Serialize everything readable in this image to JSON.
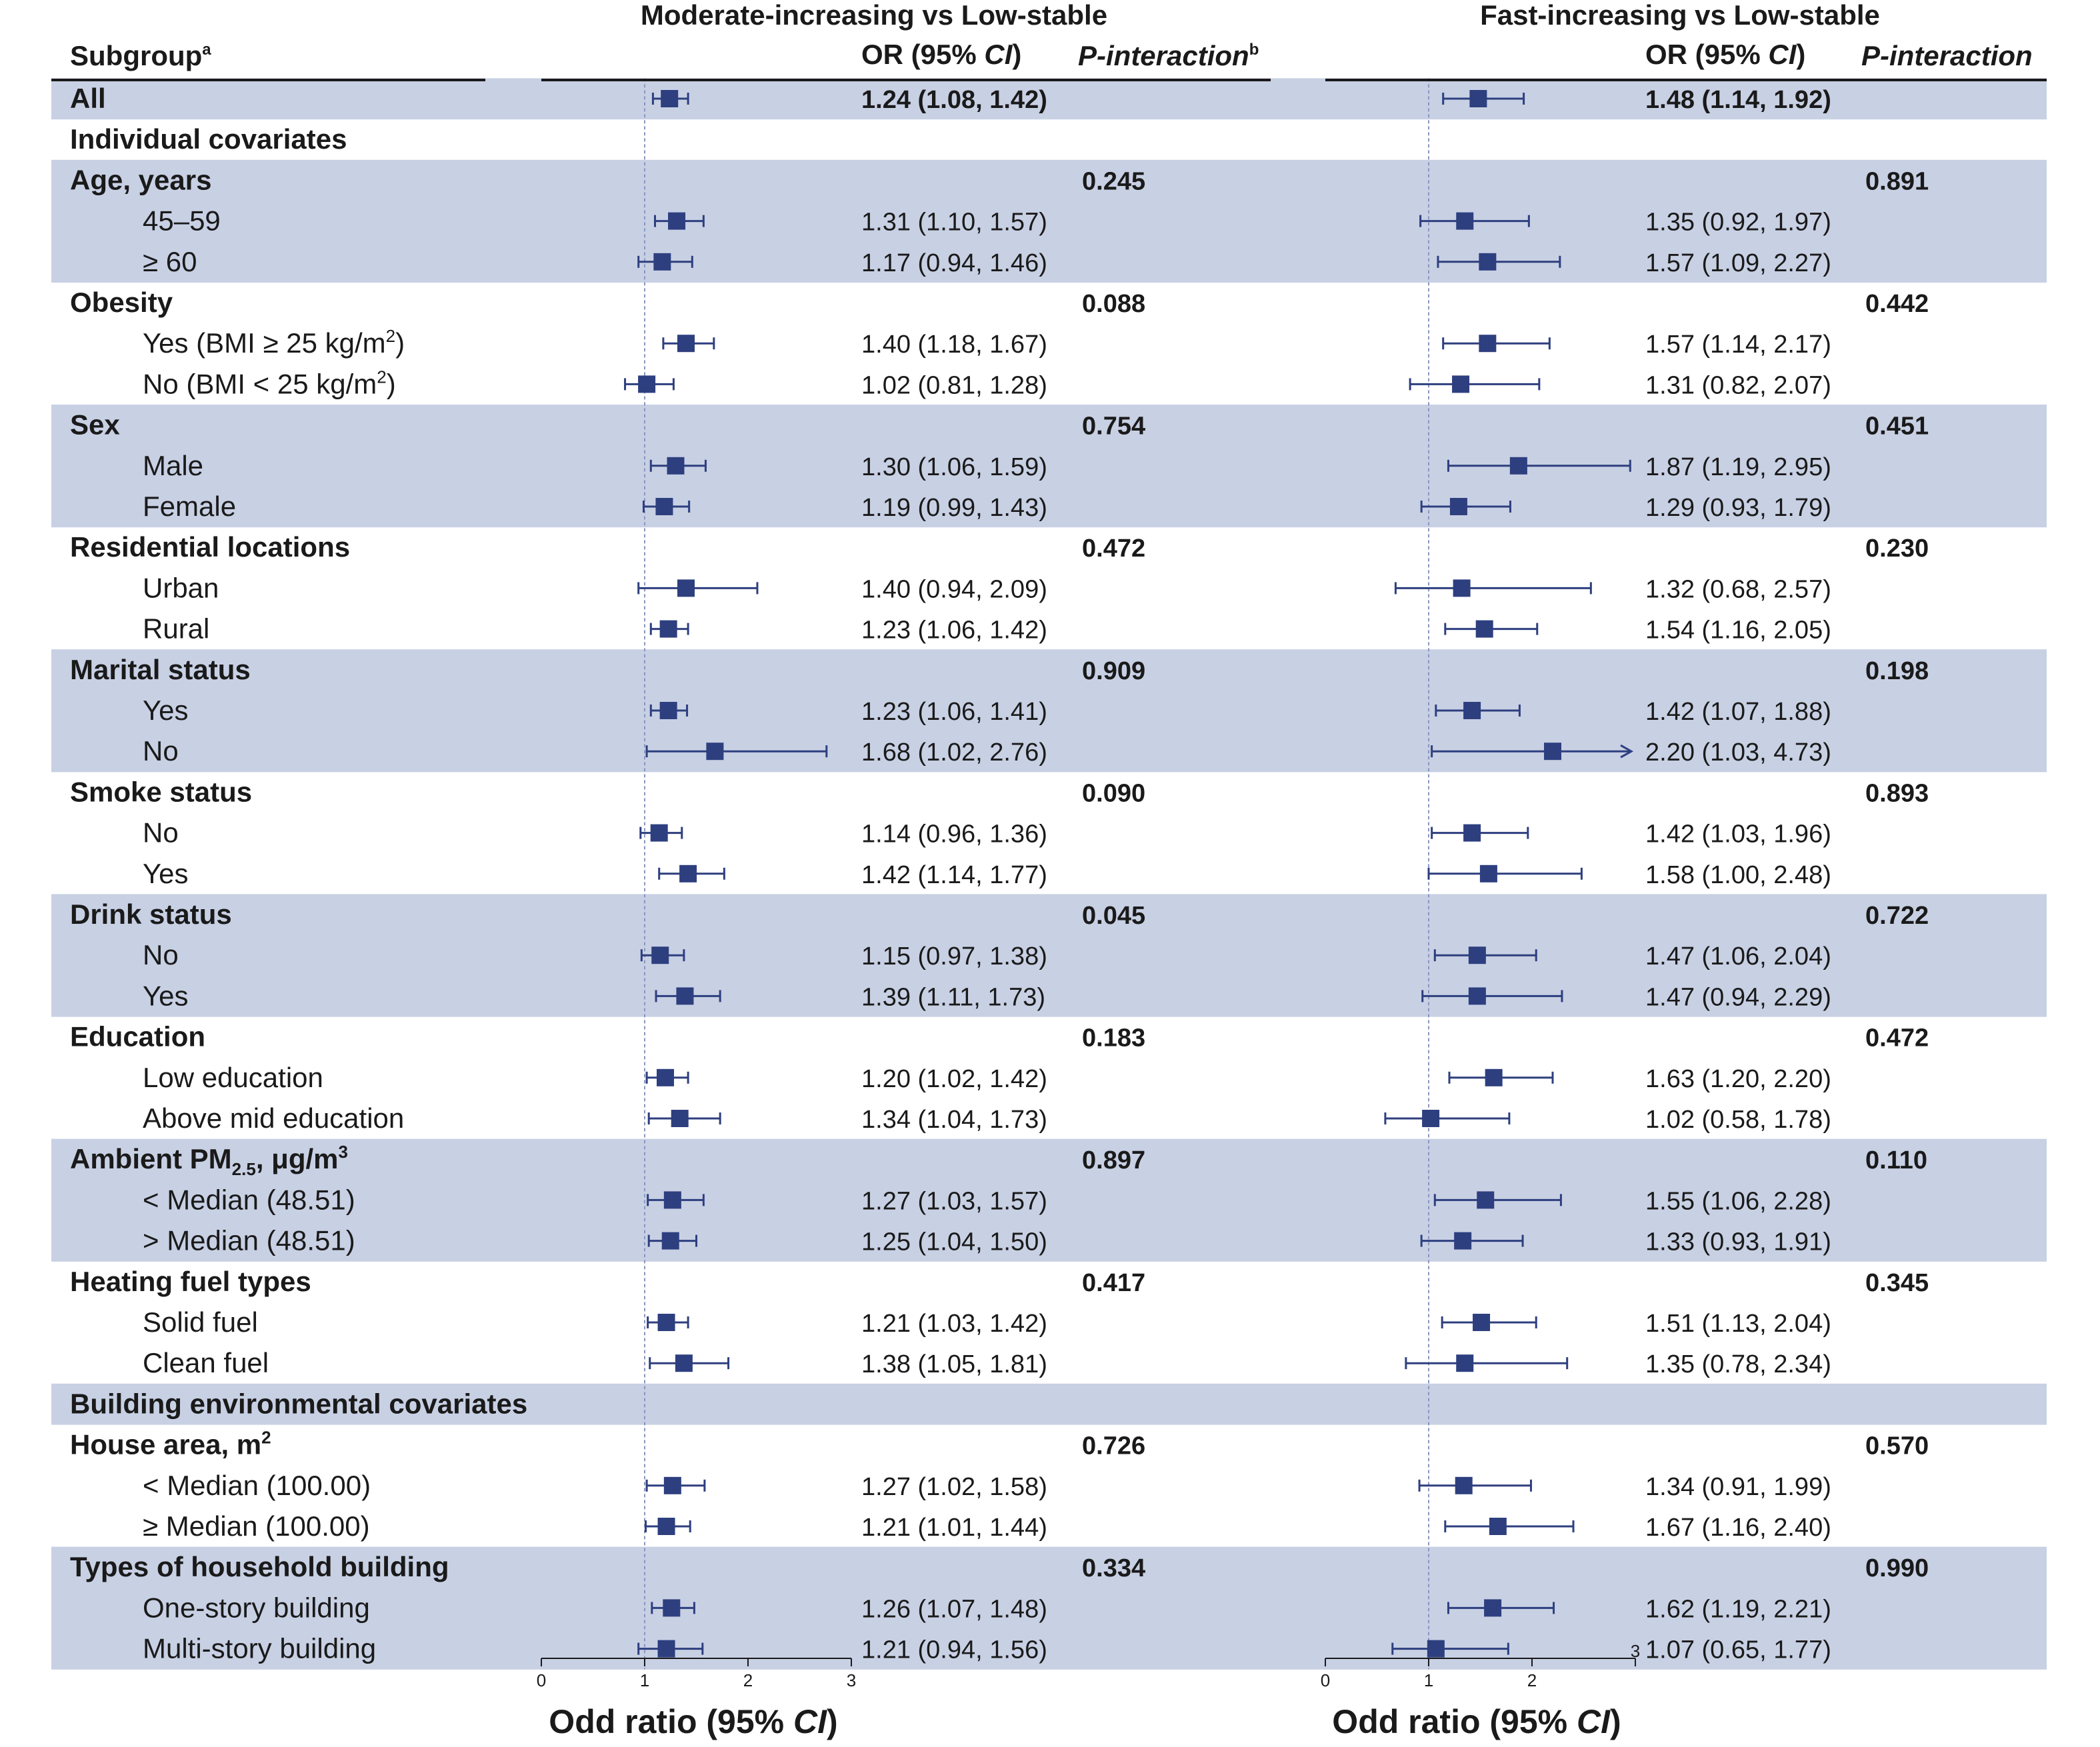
{
  "header": {
    "subgroup_label": "Subgroup",
    "subgroup_sup": "a",
    "panel_left_title": "Moderate-increasing vs Low-stable",
    "panel_right_title": "Fast-increasing vs Low-stable",
    "or_label_prefix": "OR (95% ",
    "or_label_ci": "CI",
    "or_label_suffix": ")",
    "p_left_label": "P-interaction",
    "p_left_sup": "b",
    "p_right_label": "P-interaction"
  },
  "xaxis_label_prefix": "Odd ratio (95% ",
  "xaxis_label_ci": "CI",
  "xaxis_label_suffix": ")",
  "colors": {
    "band": "#c8d0e4",
    "marker": "#2e3f7f",
    "reference_line": "#8a97c0",
    "text": "#1a1a1a"
  },
  "chart_data": [
    {
      "type": "forest",
      "title": "Moderate-increasing vs Low-stable",
      "xlabel": "Odd ratio (95% CI)",
      "xlim": [
        0,
        3
      ],
      "xticks": [
        0,
        1,
        2,
        3
      ],
      "reference": 1,
      "panel": "left"
    },
    {
      "type": "forest",
      "title": "Fast-increasing vs Low-stable",
      "xlabel": "Odd ratio (95% CI)",
      "xlim": [
        0,
        3
      ],
      "xticks": [
        0,
        1,
        2,
        3
      ],
      "reference": 1,
      "panel": "right"
    }
  ],
  "rows": [
    {
      "label": "All",
      "kind": "header",
      "band": true,
      "left": {
        "or": 1.24,
        "lo": 1.08,
        "hi": 1.42,
        "text": "1.24 (1.08, 1.42)"
      },
      "right": {
        "or": 1.48,
        "lo": 1.14,
        "hi": 1.92,
        "text": "1.48 (1.14, 1.92)"
      }
    },
    {
      "label": "Individual covariates",
      "kind": "section",
      "band": false
    },
    {
      "label": "Age, years",
      "kind": "group",
      "band": true,
      "p_left": "0.245",
      "p_right": "0.891"
    },
    {
      "label": "45–59",
      "kind": "sub",
      "band": true,
      "left": {
        "or": 1.31,
        "lo": 1.1,
        "hi": 1.57,
        "text": "1.31 (1.10, 1.57)"
      },
      "right": {
        "or": 1.35,
        "lo": 0.92,
        "hi": 1.97,
        "text": "1.35 (0.92, 1.97)"
      }
    },
    {
      "label": "≥ 60",
      "kind": "sub",
      "band": true,
      "left": {
        "or": 1.17,
        "lo": 0.94,
        "hi": 1.46,
        "text": "1.17 (0.94, 1.46)"
      },
      "right": {
        "or": 1.57,
        "lo": 1.09,
        "hi": 2.27,
        "text": "1.57 (1.09, 2.27)"
      }
    },
    {
      "label": "Obesity",
      "kind": "group",
      "band": false,
      "p_left": "0.088",
      "p_right": "0.442"
    },
    {
      "label": "Yes (BMI ≥ 25 kg/m",
      "sup": "2",
      "tail": ")",
      "kind": "sub",
      "band": false,
      "left": {
        "or": 1.4,
        "lo": 1.18,
        "hi": 1.67,
        "text": "1.40 (1.18, 1.67)"
      },
      "right": {
        "or": 1.57,
        "lo": 1.14,
        "hi": 2.17,
        "text": "1.57 (1.14, 2.17)"
      }
    },
    {
      "label": "No (BMI < 25 kg/m",
      "sup": "2",
      "tail": ")",
      "kind": "sub",
      "band": false,
      "left": {
        "or": 1.02,
        "lo": 0.81,
        "hi": 1.28,
        "text": "1.02 (0.81, 1.28)"
      },
      "right": {
        "or": 1.31,
        "lo": 0.82,
        "hi": 2.07,
        "text": "1.31 (0.82, 2.07)"
      }
    },
    {
      "label": "Sex",
      "kind": "group",
      "band": true,
      "p_left": "0.754",
      "p_right": "0.451"
    },
    {
      "label": "Male",
      "kind": "sub",
      "band": true,
      "left": {
        "or": 1.3,
        "lo": 1.06,
        "hi": 1.59,
        "text": "1.30 (1.06, 1.59)"
      },
      "right": {
        "or": 1.87,
        "lo": 1.19,
        "hi": 2.95,
        "text": "1.87 (1.19, 2.95)"
      }
    },
    {
      "label": "Female",
      "kind": "sub",
      "band": true,
      "left": {
        "or": 1.19,
        "lo": 0.99,
        "hi": 1.43,
        "text": "1.19 (0.99, 1.43)"
      },
      "right": {
        "or": 1.29,
        "lo": 0.93,
        "hi": 1.79,
        "text": "1.29 (0.93, 1.79)"
      }
    },
    {
      "label": "Residential locations",
      "kind": "group",
      "band": false,
      "p_left": "0.472",
      "p_right": "0.230"
    },
    {
      "label": "Urban",
      "kind": "sub",
      "band": false,
      "left": {
        "or": 1.4,
        "lo": 0.94,
        "hi": 2.09,
        "text": "1.40 (0.94, 2.09)"
      },
      "right": {
        "or": 1.32,
        "lo": 0.68,
        "hi": 2.57,
        "text": "1.32 (0.68, 2.57)"
      }
    },
    {
      "label": "Rural",
      "kind": "sub",
      "band": false,
      "left": {
        "or": 1.23,
        "lo": 1.06,
        "hi": 1.42,
        "text": "1.23 (1.06, 1.42)"
      },
      "right": {
        "or": 1.54,
        "lo": 1.16,
        "hi": 2.05,
        "text": "1.54 (1.16, 2.05)"
      }
    },
    {
      "label": "Marital status",
      "kind": "group",
      "band": true,
      "p_left": "0.909",
      "p_right": "0.198"
    },
    {
      "label": "Yes",
      "kind": "sub",
      "band": true,
      "left": {
        "or": 1.23,
        "lo": 1.06,
        "hi": 1.41,
        "text": "1.23 (1.06, 1.41)"
      },
      "right": {
        "or": 1.42,
        "lo": 1.07,
        "hi": 1.88,
        "text": "1.42 (1.07, 1.88)"
      }
    },
    {
      "label": "No",
      "kind": "sub",
      "band": true,
      "left": {
        "or": 1.68,
        "lo": 1.02,
        "hi": 2.76,
        "text": "1.68 (1.02, 2.76)"
      },
      "right": {
        "or": 2.2,
        "lo": 1.03,
        "hi": 4.73,
        "text": "2.20 (1.03, 4.73)"
      }
    },
    {
      "label": "Smoke status",
      "kind": "group",
      "band": false,
      "p_left": "0.090",
      "p_right": "0.893"
    },
    {
      "label": "No",
      "kind": "sub",
      "band": false,
      "left": {
        "or": 1.14,
        "lo": 0.96,
        "hi": 1.36,
        "text": "1.14 (0.96, 1.36)"
      },
      "right": {
        "or": 1.42,
        "lo": 1.03,
        "hi": 1.96,
        "text": "1.42 (1.03, 1.96)"
      }
    },
    {
      "label": "Yes",
      "kind": "sub",
      "band": false,
      "left": {
        "or": 1.42,
        "lo": 1.14,
        "hi": 1.77,
        "text": "1.42 (1.14, 1.77)"
      },
      "right": {
        "or": 1.58,
        "lo": 1.0,
        "hi": 2.48,
        "text": "1.58 (1.00, 2.48)"
      }
    },
    {
      "label": "Drink status",
      "kind": "group",
      "band": true,
      "p_left": "0.045",
      "p_right": "0.722"
    },
    {
      "label": "No",
      "kind": "sub",
      "band": true,
      "left": {
        "or": 1.15,
        "lo": 0.97,
        "hi": 1.38,
        "text": "1.15 (0.97, 1.38)"
      },
      "right": {
        "or": 1.47,
        "lo": 1.06,
        "hi": 2.04,
        "text": "1.47 (1.06, 2.04)"
      }
    },
    {
      "label": "Yes",
      "kind": "sub",
      "band": true,
      "left": {
        "or": 1.39,
        "lo": 1.11,
        "hi": 1.73,
        "text": "1.39 (1.11, 1.73)"
      },
      "right": {
        "or": 1.47,
        "lo": 0.94,
        "hi": 2.29,
        "text": "1.47 (0.94, 2.29)"
      }
    },
    {
      "label": "Education",
      "kind": "group",
      "band": false,
      "p_left": "0.183",
      "p_right": "0.472"
    },
    {
      "label": "Low education",
      "kind": "sub",
      "band": false,
      "left": {
        "or": 1.2,
        "lo": 1.02,
        "hi": 1.42,
        "text": "1.20 (1.02, 1.42)"
      },
      "right": {
        "or": 1.63,
        "lo": 1.2,
        "hi": 2.2,
        "text": "1.63 (1.20, 2.20)"
      }
    },
    {
      "label": "Above mid education",
      "kind": "sub",
      "band": false,
      "left": {
        "or": 1.34,
        "lo": 1.04,
        "hi": 1.73,
        "text": "1.34 (1.04, 1.73)"
      },
      "right": {
        "or": 1.02,
        "lo": 0.58,
        "hi": 1.78,
        "text": "1.02 (0.58, 1.78)"
      }
    },
    {
      "label": "Ambient PM",
      "sub": "2.5",
      "tail": ", μg/m",
      "sup": "3",
      "kind": "group",
      "band": true,
      "p_left": "0.897",
      "p_right": "0.110"
    },
    {
      "label": "< Median (48.51)",
      "kind": "sub",
      "band": true,
      "left": {
        "or": 1.27,
        "lo": 1.03,
        "hi": 1.57,
        "text": "1.27 (1.03, 1.57)"
      },
      "right": {
        "or": 1.55,
        "lo": 1.06,
        "hi": 2.28,
        "text": "1.55 (1.06, 2.28)"
      }
    },
    {
      "label": "> Median (48.51)",
      "kind": "sub",
      "band": true,
      "left": {
        "or": 1.25,
        "lo": 1.04,
        "hi": 1.5,
        "text": "1.25 (1.04, 1.50)"
      },
      "right": {
        "or": 1.33,
        "lo": 0.93,
        "hi": 1.91,
        "text": "1.33 (0.93, 1.91)"
      }
    },
    {
      "label": "Heating fuel types",
      "kind": "group",
      "band": false,
      "p_left": "0.417",
      "p_right": "0.345"
    },
    {
      "label": "Solid fuel",
      "kind": "sub",
      "band": false,
      "left": {
        "or": 1.21,
        "lo": 1.03,
        "hi": 1.42,
        "text": "1.21 (1.03, 1.42)"
      },
      "right": {
        "or": 1.51,
        "lo": 1.13,
        "hi": 2.04,
        "text": "1.51 (1.13, 2.04)"
      }
    },
    {
      "label": "Clean fuel",
      "kind": "sub",
      "band": false,
      "left": {
        "or": 1.38,
        "lo": 1.05,
        "hi": 1.81,
        "text": "1.38 (1.05, 1.81)"
      },
      "right": {
        "or": 1.35,
        "lo": 0.78,
        "hi": 2.34,
        "text": "1.35 (0.78, 2.34)"
      }
    },
    {
      "label": "Building environmental covariates",
      "kind": "section",
      "band": true
    },
    {
      "label": "House area, m",
      "sup": "2",
      "kind": "group",
      "band": false,
      "p_left": "0.726",
      "p_right": "0.570"
    },
    {
      "label": "< Median (100.00)",
      "kind": "sub",
      "band": false,
      "left": {
        "or": 1.27,
        "lo": 1.02,
        "hi": 1.58,
        "text": "1.27 (1.02, 1.58)"
      },
      "right": {
        "or": 1.34,
        "lo": 0.91,
        "hi": 1.99,
        "text": "1.34 (0.91, 1.99)"
      }
    },
    {
      "label": "≥ Median (100.00)",
      "kind": "sub",
      "band": false,
      "left": {
        "or": 1.21,
        "lo": 1.01,
        "hi": 1.44,
        "text": "1.21 (1.01, 1.44)"
      },
      "right": {
        "or": 1.67,
        "lo": 1.16,
        "hi": 2.4,
        "text": "1.67 (1.16, 2.40)"
      }
    },
    {
      "label": "Types of household building",
      "kind": "group",
      "band": true,
      "p_left": "0.334",
      "p_right": "0.990"
    },
    {
      "label": "One-story building",
      "kind": "sub",
      "band": true,
      "left": {
        "or": 1.26,
        "lo": 1.07,
        "hi": 1.48,
        "text": "1.26 (1.07, 1.48)"
      },
      "right": {
        "or": 1.62,
        "lo": 1.19,
        "hi": 2.21,
        "text": "1.62 (1.19, 2.21)"
      }
    },
    {
      "label": "Multi-story building",
      "kind": "sub",
      "band": true,
      "left": {
        "or": 1.21,
        "lo": 0.94,
        "hi": 1.56,
        "text": "1.21 (0.94, 1.56)"
      },
      "right": {
        "or": 1.07,
        "lo": 0.65,
        "hi": 1.77,
        "text": "1.07 (0.65, 1.77)"
      }
    }
  ]
}
